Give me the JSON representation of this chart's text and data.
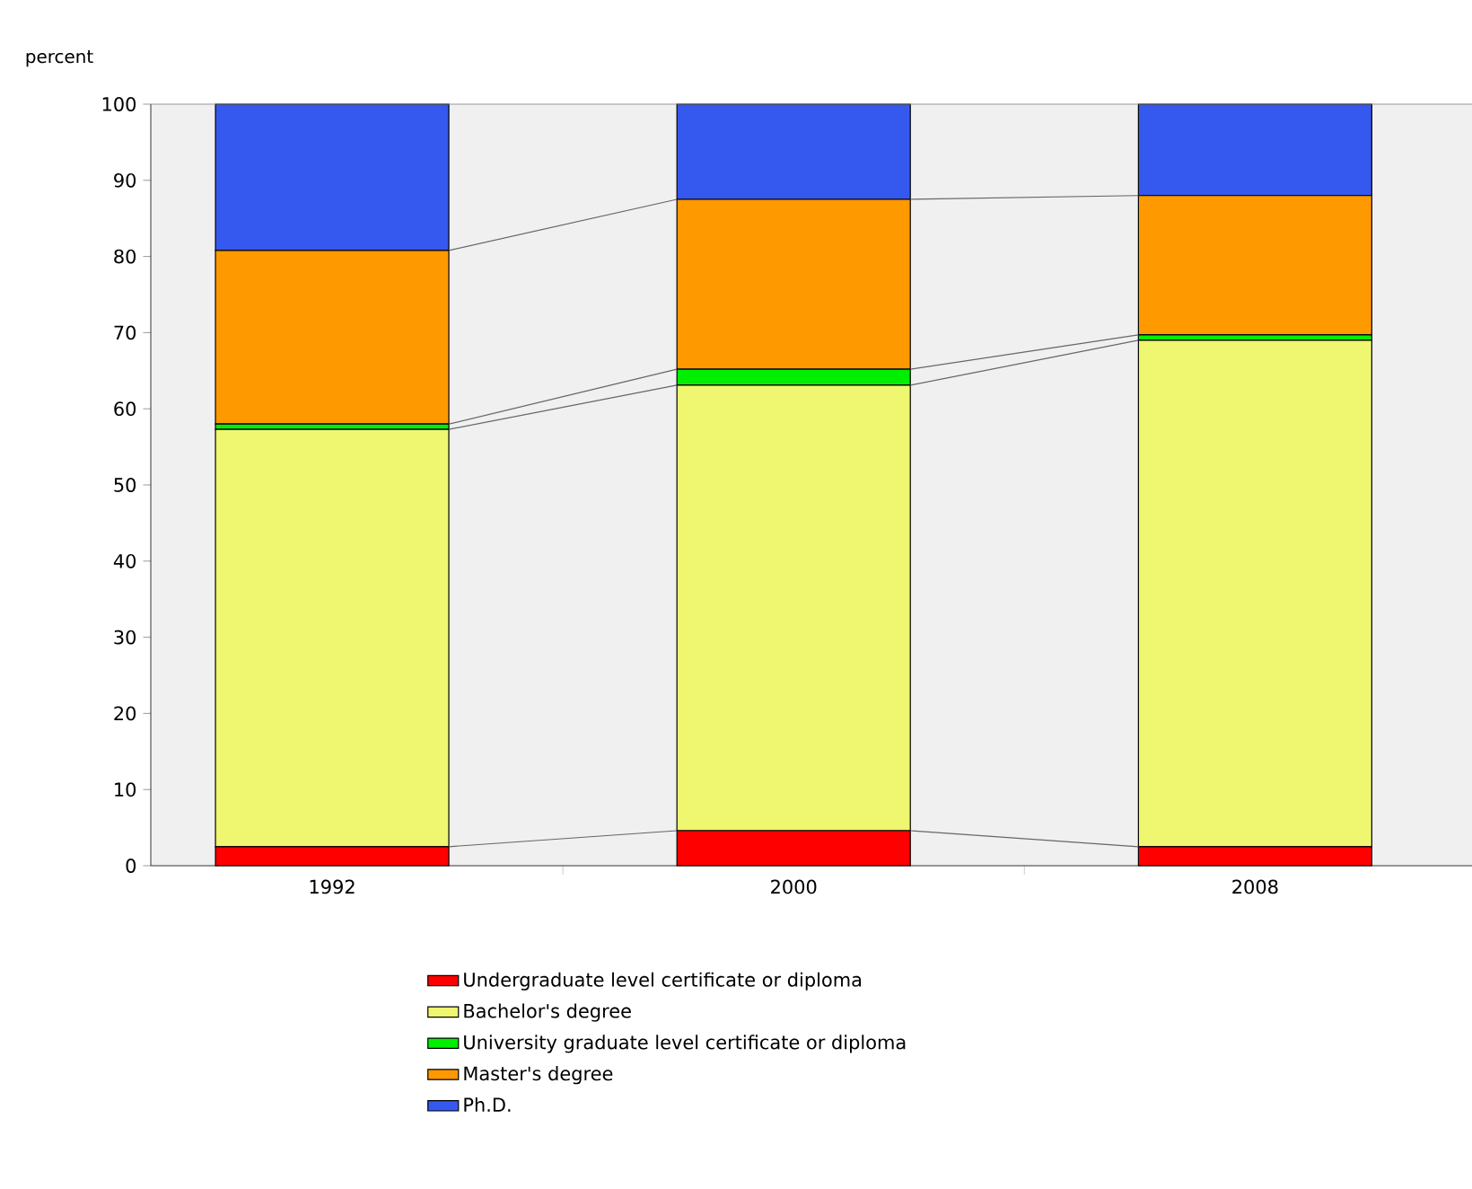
{
  "chart_data": {
    "type": "bar",
    "stacked": true,
    "ylabel": "percent",
    "categories": [
      "1992",
      "2000",
      "2008"
    ],
    "series": [
      {
        "name": "Undergraduate level certificate or diploma",
        "color": "#ff0000",
        "values": [
          2.5,
          4.6,
          2.5
        ]
      },
      {
        "name": "Bachelor's degree",
        "color": "#eef76f",
        "values": [
          54.8,
          58.5,
          66.5
        ]
      },
      {
        "name": "University graduate level certificate or diploma",
        "color": "#00ee00",
        "values": [
          0.7,
          2.1,
          0.7
        ]
      },
      {
        "name": "Master's degree",
        "color": "#ff9900",
        "values": [
          22.8,
          22.3,
          18.3
        ]
      },
      {
        "name": "Ph.D.",
        "color": "#3558ef",
        "values": [
          19.2,
          12.5,
          12.0
        ]
      }
    ],
    "ylim": [
      0,
      100
    ],
    "yticks": [
      0,
      10,
      20,
      30,
      40,
      50,
      60,
      70,
      80,
      90,
      100
    ],
    "grid": false,
    "legend": "bottom"
  }
}
